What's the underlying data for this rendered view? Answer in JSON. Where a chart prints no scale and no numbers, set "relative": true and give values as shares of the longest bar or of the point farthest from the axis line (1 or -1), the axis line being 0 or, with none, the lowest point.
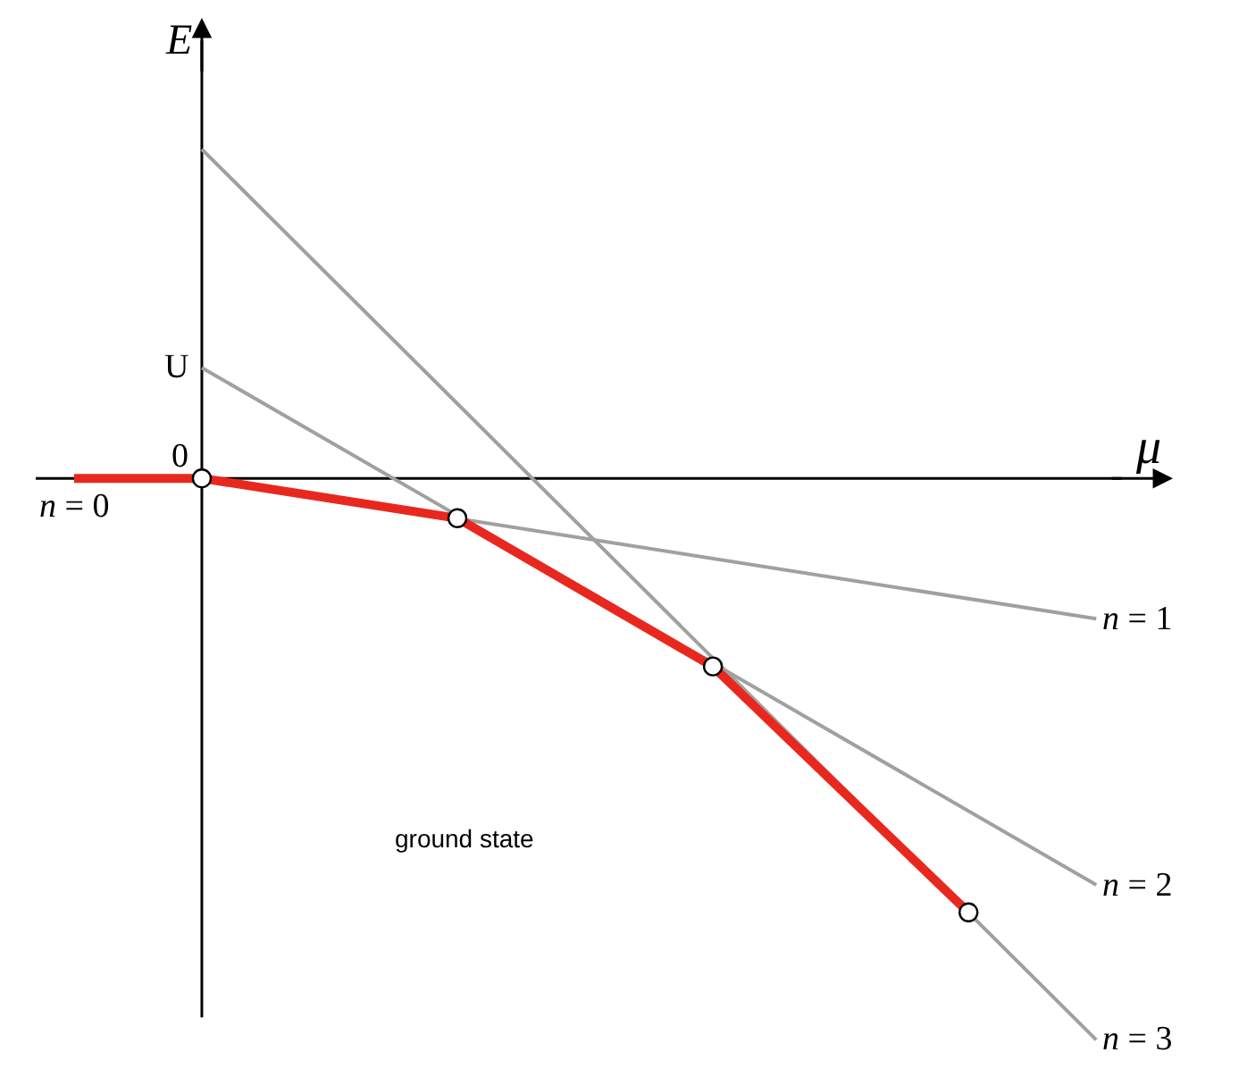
{
  "chart_data": {
    "type": "line",
    "xlabel": "μ",
    "ylabel": "E",
    "relative": true,
    "categories": [
      null,
      null,
      null,
      null,
      null,
      null,
      null,
      null,
      null
    ],
    "grid": false,
    "line_style": "solid",
    "series": [
      {
        "name": "n = 0",
        "color": "#e8281e",
        "values": [
          0,
          0,
          null,
          null,
          null,
          null,
          null,
          null,
          null
        ]
      },
      {
        "color": "#e8281e",
        "values": [
          null,
          0,
          null,
          -0.071,
          null,
          -0.335,
          null,
          -0.773,
          null
        ],
        "marker": "circle"
      },
      {
        "name": "n = 1",
        "color": "#a0a0a0",
        "values": [
          null,
          0,
          null,
          null,
          null,
          null,
          null,
          null,
          -0.25
        ],
        "marker": "none"
      },
      {
        "name": "n = 2",
        "color": "#a0a0a0",
        "values": [
          null,
          0.197,
          null,
          null,
          null,
          null,
          null,
          null,
          -0.724
        ],
        "marker": "none"
      },
      {
        "name": "n = 3",
        "color": "#a0a0a0",
        "values": [
          null,
          0.586,
          null,
          null,
          null,
          null,
          null,
          null,
          -1
        ],
        "marker": "none"
      }
    ],
    "annotations": [
      {
        "text": "0",
        "y": 0
      },
      "U",
      "ground state"
    ]
  }
}
